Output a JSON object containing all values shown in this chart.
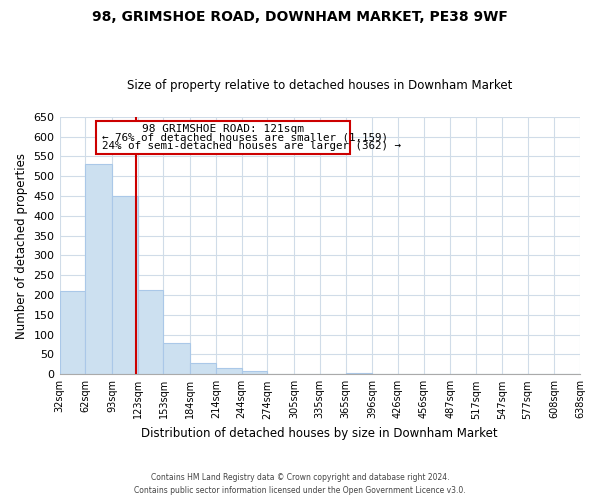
{
  "title": "98, GRIMSHOE ROAD, DOWNHAM MARKET, PE38 9WF",
  "subtitle": "Size of property relative to detached houses in Downham Market",
  "xlabel": "Distribution of detached houses by size in Downham Market",
  "ylabel": "Number of detached properties",
  "bar_edges": [
    32,
    62,
    93,
    123,
    153,
    184,
    214,
    244,
    274,
    305,
    335,
    365,
    396,
    426,
    456,
    487,
    517,
    547,
    577,
    608,
    638
  ],
  "bar_heights": [
    210,
    530,
    450,
    213,
    79,
    28,
    15,
    9,
    0,
    0,
    0,
    3,
    0,
    0,
    0,
    0,
    1,
    0,
    0,
    2
  ],
  "bar_color": "#cce0f0",
  "bar_edgecolor": "#aac8e8",
  "vline_x": 121,
  "vline_color": "#cc0000",
  "ylim": [
    0,
    650
  ],
  "yticks": [
    0,
    50,
    100,
    150,
    200,
    250,
    300,
    350,
    400,
    450,
    500,
    550,
    600,
    650
  ],
  "xtick_labels": [
    "32sqm",
    "62sqm",
    "93sqm",
    "123sqm",
    "153sqm",
    "184sqm",
    "214sqm",
    "244sqm",
    "274sqm",
    "305sqm",
    "335sqm",
    "365sqm",
    "396sqm",
    "426sqm",
    "456sqm",
    "487sqm",
    "517sqm",
    "547sqm",
    "577sqm",
    "608sqm",
    "638sqm"
  ],
  "annotation_box_text_line1": "98 GRIMSHOE ROAD: 121sqm",
  "annotation_box_text_line2": "← 76% of detached houses are smaller (1,159)",
  "annotation_box_text_line3": "24% of semi-detached houses are larger (362) →",
  "footer_line1": "Contains HM Land Registry data © Crown copyright and database right 2024.",
  "footer_line2": "Contains public sector information licensed under the Open Government Licence v3.0.",
  "grid_color": "#d0dce8",
  "background_color": "#ffffff"
}
